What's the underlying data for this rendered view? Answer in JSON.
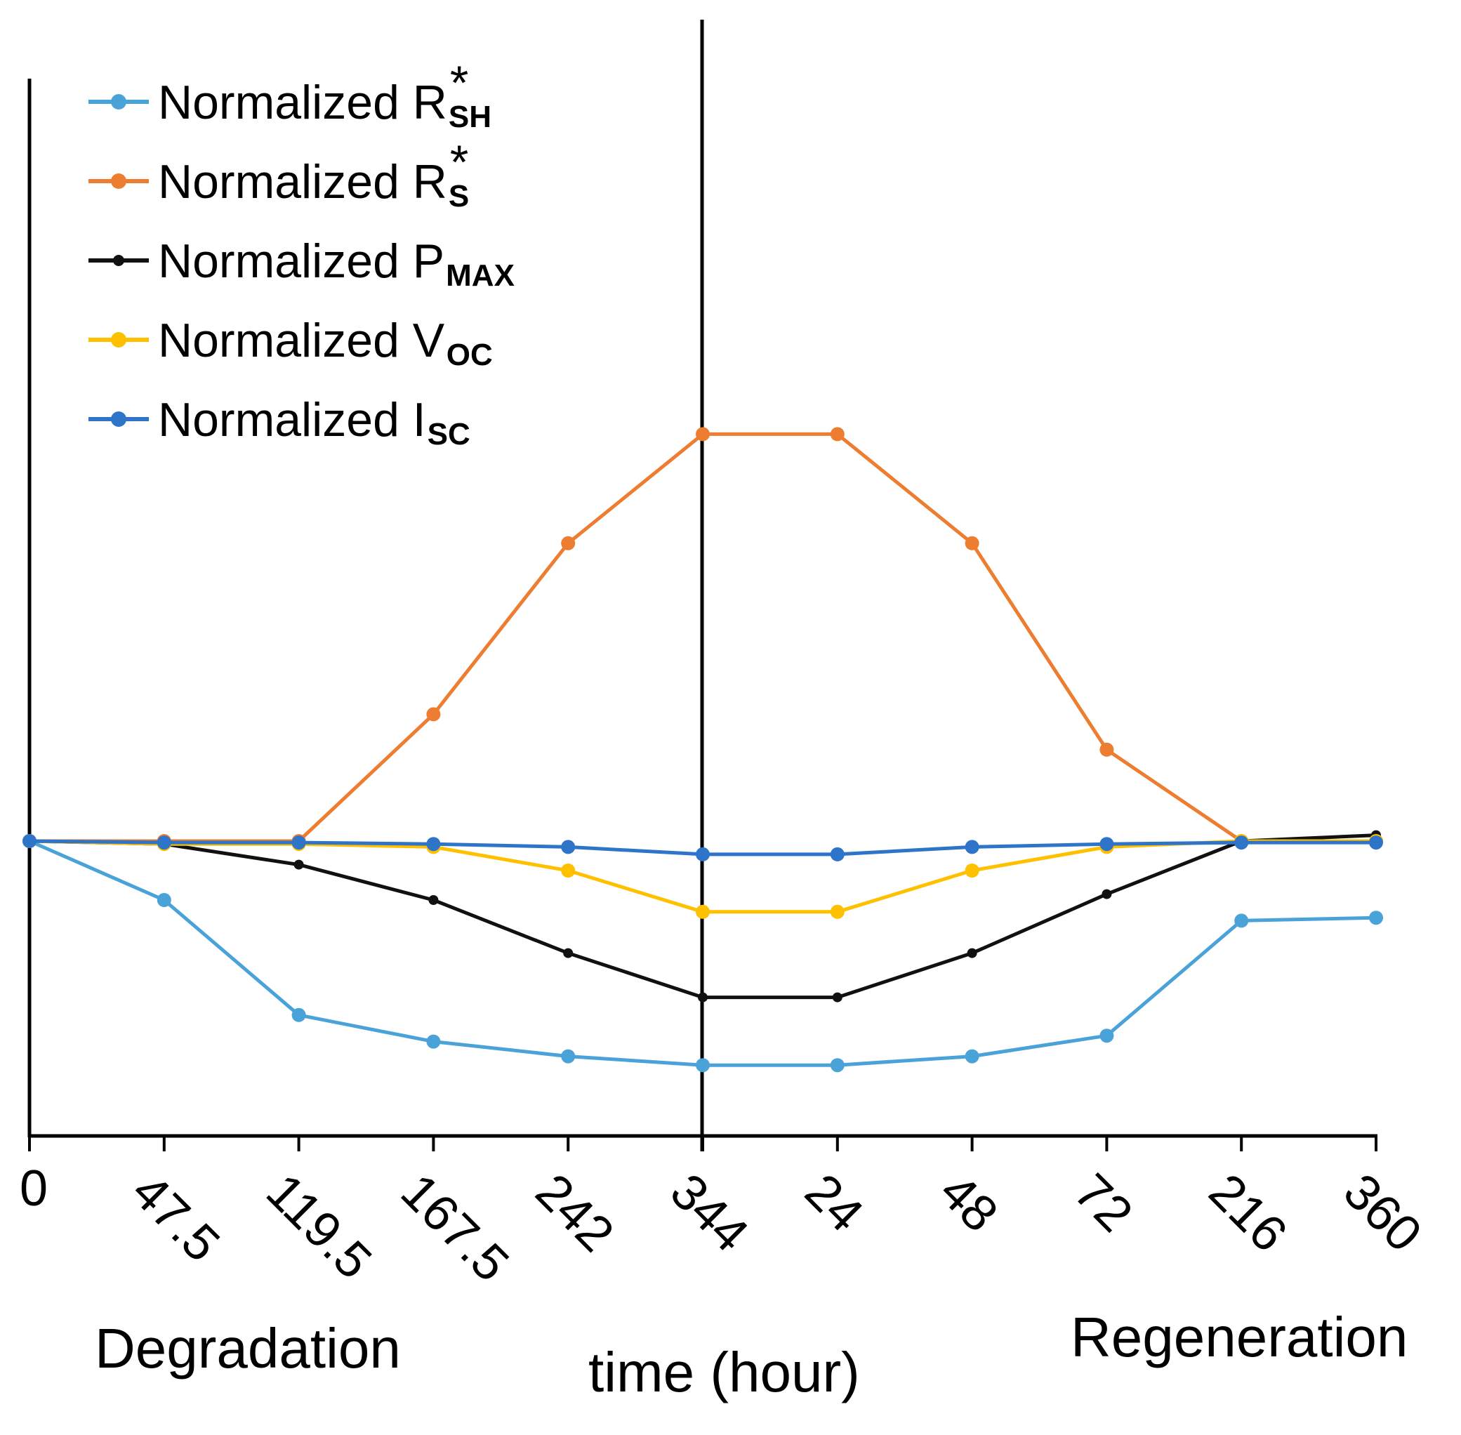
{
  "chart_data": {
    "type": "line",
    "title": "",
    "xlabel": "time (hour)",
    "ylabel": "",
    "categories": [
      "0",
      "47.5",
      "119.5",
      "167.5",
      "242",
      "344",
      "24",
      "48",
      "72",
      "216",
      "360"
    ],
    "sections": [
      {
        "name": "Degradation",
        "range": [
          "0",
          "344"
        ]
      },
      {
        "name": "Regeneration",
        "range": [
          "24",
          "360"
        ]
      }
    ],
    "divider_after_category": "344",
    "ylim": [
      0,
      2.7
    ],
    "grid": false,
    "legend_position": "top-left",
    "series": [
      {
        "name": "Normalized R",
        "sub": "SH",
        "sup": "*",
        "color": "#4aa3d8",
        "marker_size": "medium",
        "values": [
          1.0,
          0.8,
          0.41,
          0.32,
          0.27,
          0.24,
          0.24,
          0.27,
          0.34,
          0.73,
          0.74
        ]
      },
      {
        "name": "Normalized R",
        "sub": "S",
        "sup": "*",
        "color": "#ed7d31",
        "marker_size": "medium",
        "values": [
          1.0,
          1.0,
          1.0,
          1.43,
          2.01,
          2.38,
          2.38,
          2.01,
          1.31,
          1.0,
          1.0
        ]
      },
      {
        "name": "Normalized P",
        "sub": "MAX",
        "sup": "",
        "color": "#111111",
        "marker_size": "small",
        "values": [
          1.0,
          0.99,
          0.92,
          0.8,
          0.62,
          0.47,
          0.47,
          0.62,
          0.82,
          1.0,
          1.02
        ]
      },
      {
        "name": "Normalized V",
        "sub": "OC",
        "sup": "",
        "color": "#ffc000",
        "marker_size": "medium",
        "values": [
          1.0,
          0.99,
          0.99,
          0.98,
          0.9,
          0.76,
          0.76,
          0.9,
          0.98,
          1.0,
          1.0
        ]
      },
      {
        "name": "Normalized I",
        "sub": "SC",
        "sup": "",
        "color": "#2e75c9",
        "marker_size": "medium",
        "values": [
          1.0,
          0.995,
          0.995,
          0.99,
          0.98,
          0.955,
          0.955,
          0.98,
          0.99,
          0.995,
          0.995
        ]
      }
    ]
  }
}
